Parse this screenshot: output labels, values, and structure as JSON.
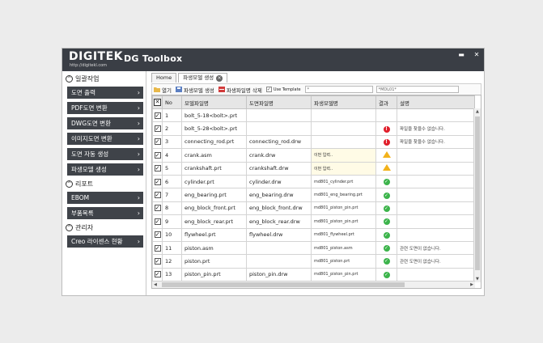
{
  "app": {
    "logo": "DIGITEK",
    "logo_url": "http://digitekl.com",
    "title": "DG Toolbox",
    "window_min": "▬",
    "window_close": "✕"
  },
  "sidebar": {
    "sections": [
      {
        "title": "일괄작업",
        "items": [
          "도면 출력",
          "PDF도면 변환",
          "DWG도면 변환",
          "이미지도면 변환",
          "도면 자동 생성",
          "파생모델 생성"
        ]
      },
      {
        "title": "리포트",
        "items": [
          "EBOM",
          "부품목록"
        ]
      },
      {
        "title": "관리자",
        "items": [
          "Creo 라이센스 현황"
        ]
      }
    ]
  },
  "tabs": [
    {
      "label": "Home"
    },
    {
      "label": "파생모델 생성"
    }
  ],
  "toolbar": {
    "open": "열기",
    "generate": "파생모델 생성",
    "delete": "파생파일명 삭제",
    "use_template": "Use Template",
    "input1": "*",
    "input2": "*MDL01*"
  },
  "grid": {
    "columns": [
      "No",
      "모델파일명",
      "도면파일명",
      "파생모델명",
      "결과",
      "설명"
    ],
    "rows": [
      {
        "no": "1",
        "model": "bolt_5-18<bolt>.prt",
        "drawing": "",
        "derived": "",
        "result": "",
        "desc": ""
      },
      {
        "no": "2",
        "model": "bolt_5-28<bolt>.prt",
        "drawing": "",
        "derived": "",
        "result": "error",
        "desc": "파일을 찾을수 없습니다."
      },
      {
        "no": "3",
        "model": "connecting_rod.prt",
        "drawing": "connecting_rod.drw",
        "derived": "",
        "result": "error",
        "desc": "파일을 찾을수 없습니다."
      },
      {
        "no": "4",
        "model": "crank.asm",
        "drawing": "crank.drw",
        "derived": "이번 입력..",
        "result": "warn",
        "desc": ""
      },
      {
        "no": "5",
        "model": "crankshaft.prt",
        "drawing": "crankshaft.drw",
        "derived": "이번 입력..",
        "result": "warn",
        "desc": ""
      },
      {
        "no": "6",
        "model": "cylinder.prt",
        "drawing": "cylinder.drw",
        "derived": "md801_cylinder.prt",
        "result": "ok",
        "desc": ""
      },
      {
        "no": "7",
        "model": "eng_bearing.prt",
        "drawing": "eng_bearing.drw",
        "derived": "md801_eng_bearing.prt",
        "result": "ok",
        "desc": ""
      },
      {
        "no": "8",
        "model": "eng_block_front.prt",
        "drawing": "eng_block_front.drw",
        "derived": "md801_piston_pin.prt",
        "result": "ok",
        "desc": ""
      },
      {
        "no": "9",
        "model": "eng_block_rear.prt",
        "drawing": "eng_block_rear.drw",
        "derived": "md801_piston_pin.prt",
        "result": "ok",
        "desc": ""
      },
      {
        "no": "10",
        "model": "flywheel.prt",
        "drawing": "flywheel.drw",
        "derived": "md801_flywheel.prt",
        "result": "ok",
        "desc": ""
      },
      {
        "no": "11",
        "model": "piston.asm",
        "drawing": "",
        "derived": "md801_piston.asm",
        "result": "ok",
        "desc": "관련 도면이 없습니다."
      },
      {
        "no": "12",
        "model": "piston.prt",
        "drawing": "",
        "derived": "md801_piston.prt",
        "result": "ok",
        "desc": "관련 도면이 없습니다."
      },
      {
        "no": "13",
        "model": "piston_pin.prt",
        "drawing": "piston_pin.drw",
        "derived": "md801_piston_pin.prt",
        "result": "ok",
        "desc": ""
      }
    ]
  },
  "colors": {
    "titlebar": "#3a3e45",
    "sidebar_button": "#3f4349",
    "ok": "#3cb44b",
    "error": "#e01e2a",
    "warn": "#f2b21b"
  }
}
